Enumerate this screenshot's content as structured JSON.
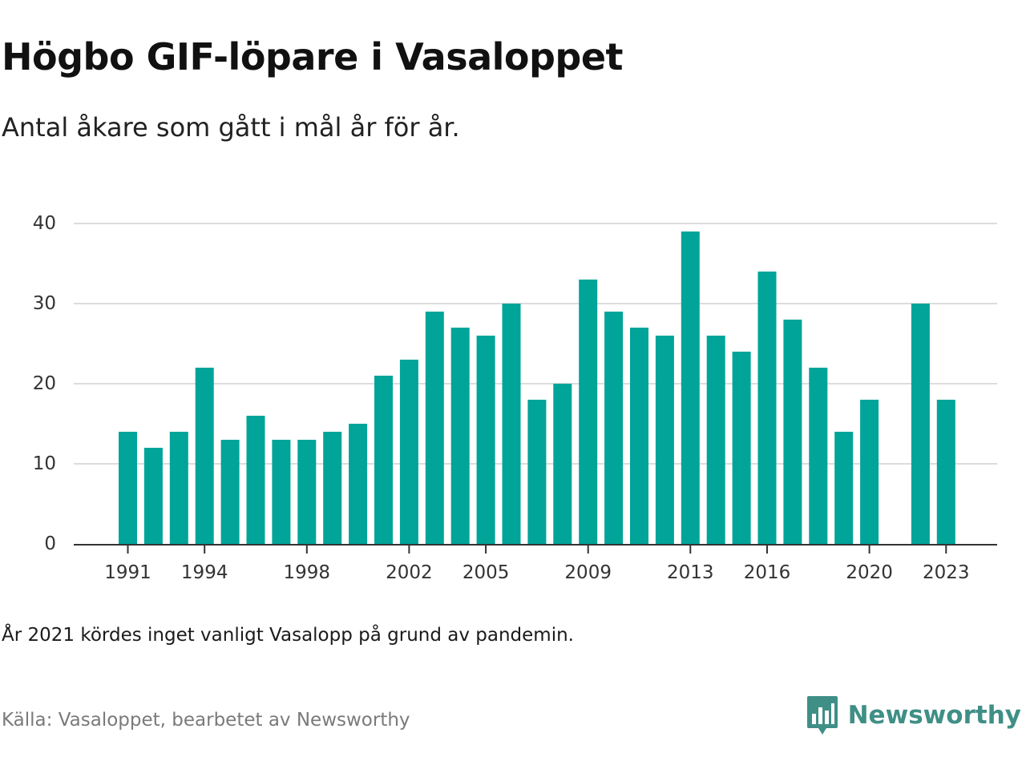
{
  "header": {
    "title": "Högbo GIF-löpare i Vasaloppet",
    "subtitle": "Antal åkare som gått i mål år för år."
  },
  "footer": {
    "note": "År 2021 kördes inget vanligt Vasalopp på grund av pandemin.",
    "source": "Källa: Vasaloppet, bearbetet av Newsworthy",
    "brand": "Newsworthy",
    "brand_icon": "newsworthy-logo-icon"
  },
  "colors": {
    "bar": "#00a499",
    "grid": "#dcdcdc",
    "axis": "#333333",
    "brand": "#3f8f86"
  },
  "chart_data": {
    "type": "bar",
    "title": "Högbo GIF-löpare i Vasaloppet",
    "subtitle": "Antal åkare som gått i mål år för år.",
    "xlabel": "",
    "ylabel": "",
    "categories": [
      1991,
      1992,
      1993,
      1994,
      1995,
      1996,
      1997,
      1998,
      1999,
      2000,
      2001,
      2002,
      2003,
      2004,
      2005,
      2006,
      2007,
      2008,
      2009,
      2010,
      2011,
      2012,
      2013,
      2014,
      2015,
      2016,
      2017,
      2018,
      2019,
      2020,
      2021,
      2022,
      2023
    ],
    "values": [
      14,
      12,
      14,
      22,
      13,
      16,
      13,
      13,
      14,
      15,
      21,
      23,
      29,
      27,
      26,
      30,
      18,
      20,
      33,
      29,
      27,
      26,
      39,
      26,
      24,
      34,
      28,
      22,
      14,
      18,
      null,
      30,
      18
    ],
    "x_tick_labels": [
      "1991",
      "1994",
      "1998",
      "2002",
      "2005",
      "2009",
      "2013",
      "2016",
      "2020",
      "2023"
    ],
    "y_tick_labels": [
      "0",
      "10",
      "20",
      "30",
      "40"
    ],
    "ylim": [
      0,
      40
    ],
    "grid": true,
    "legend": "none"
  }
}
